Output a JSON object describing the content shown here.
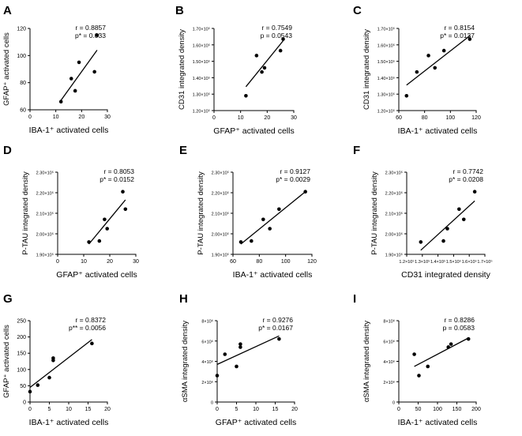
{
  "chart_data": [
    {
      "type": "scatter",
      "panel_label": "A",
      "xlabel": "IBA-1⁺ activated cells",
      "ylabel": "GFAP⁺ activated cells",
      "stats": [
        "r = 0.8857",
        "p* = 0.033"
      ],
      "xlim": [
        0,
        30
      ],
      "ylim": [
        60,
        120
      ],
      "xticks": [
        0,
        10,
        20,
        30
      ],
      "xtick_labels": [
        "0",
        "10",
        "20",
        "30"
      ],
      "yticks": [
        60,
        80,
        100,
        120
      ],
      "ytick_labels": [
        "60",
        "80",
        "100",
        "120"
      ],
      "points": [
        [
          12,
          66
        ],
        [
          16,
          83
        ],
        [
          17.5,
          74
        ],
        [
          19,
          95
        ],
        [
          25,
          88
        ],
        [
          26,
          115
        ]
      ],
      "fit": [
        [
          12,
          67
        ],
        [
          26,
          104
        ]
      ]
    },
    {
      "type": "scatter",
      "panel_label": "B",
      "xlabel": "GFAP⁺ activated cells",
      "ylabel": "CD31 integrated density",
      "stats": [
        "r = 0.7549",
        "p = 0.0543"
      ],
      "xlim": [
        0,
        30
      ],
      "ylim": [
        120000,
        170000
      ],
      "xticks": [
        0,
        10,
        20,
        30
      ],
      "xtick_labels": [
        "0",
        "10",
        "20",
        "30"
      ],
      "yticks": [
        120000,
        130000,
        140000,
        150000,
        160000,
        170000
      ],
      "ytick_labels": [
        "1.20×10⁵",
        "1.30×10⁵",
        "1.40×10⁵",
        "1.50×10⁵",
        "1.60×10⁵",
        "1.70×10⁵"
      ],
      "points": [
        [
          12,
          129000
        ],
        [
          16,
          153500
        ],
        [
          18,
          143500
        ],
        [
          19,
          146000
        ],
        [
          25,
          156500
        ],
        [
          26,
          163500
        ]
      ],
      "fit": [
        [
          12,
          134500
        ],
        [
          26,
          162500
        ]
      ]
    },
    {
      "type": "scatter",
      "panel_label": "C",
      "xlabel": "IBA-1⁺ activated cells",
      "ylabel": "CD31 integrated density",
      "stats": [
        "r = 0.8154",
        "p* = 0.0137"
      ],
      "xlim": [
        60,
        120
      ],
      "ylim": [
        120000,
        170000
      ],
      "xticks": [
        60,
        80,
        100,
        120
      ],
      "xtick_labels": [
        "60",
        "80",
        "100",
        "120"
      ],
      "yticks": [
        120000,
        130000,
        140000,
        150000,
        160000,
        170000
      ],
      "ytick_labels": [
        "1.20×10⁵",
        "1.30×10⁵",
        "1.40×10⁵",
        "1.50×10⁵",
        "1.60×10⁵",
        "1.70×10⁵"
      ],
      "points": [
        [
          66,
          129000
        ],
        [
          74,
          143500
        ],
        [
          83,
          153500
        ],
        [
          88,
          146000
        ],
        [
          95,
          156500
        ],
        [
          115,
          163500
        ]
      ],
      "fit": [
        [
          66,
          135500
        ],
        [
          115,
          165500
        ]
      ]
    },
    {
      "type": "scatter",
      "panel_label": "D",
      "xlabel": "GFAP⁺ activated cells",
      "ylabel": "P-TAU integrated density",
      "stats": [
        "r = 0.8053",
        "p* = 0.0152"
      ],
      "xlim": [
        0,
        30
      ],
      "ylim": [
        190000,
        230000
      ],
      "xticks": [
        0,
        10,
        20,
        30
      ],
      "xtick_labels": [
        "0",
        "10",
        "20",
        "30"
      ],
      "yticks": [
        190000,
        200000,
        210000,
        220000,
        230000
      ],
      "ytick_labels": [
        "1.90×10⁵",
        "2.00×10⁵",
        "2.10×10⁵",
        "2.20×10⁵",
        "2.30×10⁵"
      ],
      "points": [
        [
          12,
          196000
        ],
        [
          16,
          196500
        ],
        [
          18,
          207000
        ],
        [
          19,
          202500
        ],
        [
          25,
          220500
        ],
        [
          26,
          212000
        ]
      ],
      "fit": [
        [
          12,
          195000
        ],
        [
          26,
          216500
        ]
      ]
    },
    {
      "type": "scatter",
      "panel_label": "E",
      "xlabel": "IBA-1⁺ activated cells",
      "ylabel": "P-TAU integrated density",
      "stats": [
        "r = 0.9127",
        "p* = 0.0029"
      ],
      "xlim": [
        60,
        120
      ],
      "ylim": [
        190000,
        230000
      ],
      "xticks": [
        60,
        80,
        100,
        120
      ],
      "xtick_labels": [
        "60",
        "80",
        "100",
        "120"
      ],
      "yticks": [
        190000,
        200000,
        210000,
        220000,
        230000
      ],
      "ytick_labels": [
        "1.90×10⁵",
        "2.00×10⁵",
        "2.10×10⁵",
        "2.20×10⁵",
        "2.30×10⁵"
      ],
      "points": [
        [
          66,
          196000
        ],
        [
          74,
          196500
        ],
        [
          83,
          207000
        ],
        [
          88,
          202500
        ],
        [
          95,
          212000
        ],
        [
          115,
          220500
        ]
      ],
      "fit": [
        [
          66,
          195000
        ],
        [
          115,
          220500
        ]
      ]
    },
    {
      "type": "scatter",
      "panel_label": "F",
      "xlabel": "CD31 integrated density",
      "ylabel": "P-TAU integrated density",
      "stats": [
        "r = 0.7742",
        "p* = 0.0208"
      ],
      "xlim": [
        120000,
        170000
      ],
      "ylim": [
        190000,
        230000
      ],
      "xticks": [
        120000,
        130000,
        140000,
        150000,
        160000,
        170000
      ],
      "xtick_labels": [
        "1.2×10⁵",
        "1.3×10⁵",
        "1.4×10⁵",
        "1.5×10⁵",
        "1.6×10⁵",
        "1.7×10⁵"
      ],
      "yticks": [
        190000,
        200000,
        210000,
        220000,
        230000
      ],
      "ytick_labels": [
        "1.90×10⁵",
        "2.00×10⁵",
        "2.10×10⁵",
        "2.20×10⁵",
        "2.30×10⁵"
      ],
      "points": [
        [
          129000,
          196000
        ],
        [
          143500,
          196500
        ],
        [
          146000,
          202500
        ],
        [
          153500,
          212000
        ],
        [
          156500,
          207000
        ],
        [
          163500,
          220500
        ]
      ],
      "fit": [
        [
          129000,
          192000
        ],
        [
          163500,
          216000
        ]
      ]
    },
    {
      "type": "scatter",
      "panel_label": "G",
      "xlabel": "IBA-1⁺ activated cells",
      "ylabel": "GFAP⁺ activated cells",
      "stats": [
        "r = 0.8372",
        "p** = 0.0056"
      ],
      "xlim": [
        0,
        20
      ],
      "ylim": [
        0,
        250
      ],
      "xticks": [
        0,
        5,
        10,
        15,
        20
      ],
      "xtick_labels": [
        "0",
        "5",
        "10",
        "15",
        "20"
      ],
      "yticks": [
        0,
        50,
        100,
        150,
        200,
        250
      ],
      "ytick_labels": [
        "0",
        "50",
        "100",
        "150",
        "200",
        "250"
      ],
      "points": [
        [
          0,
          32
        ],
        [
          2,
          52
        ],
        [
          5,
          75
        ],
        [
          6,
          128
        ],
        [
          6,
          135
        ],
        [
          16,
          180
        ]
      ],
      "fit": [
        [
          0,
          45
        ],
        [
          16,
          192
        ]
      ]
    },
    {
      "type": "scatter",
      "panel_label": "H",
      "xlabel": "GFAP⁺ activated cells",
      "ylabel": "αSMA integrated density",
      "stats": [
        "r = 0.9276",
        "p* = 0.0167"
      ],
      "xlim": [
        0,
        20
      ],
      "ylim": [
        0,
        8000000
      ],
      "xticks": [
        0,
        5,
        10,
        15,
        20
      ],
      "xtick_labels": [
        "0",
        "5",
        "10",
        "15",
        "20"
      ],
      "yticks": [
        0,
        2000000,
        4000000,
        6000000,
        8000000
      ],
      "ytick_labels": [
        "0",
        "2×10⁶",
        "4×10⁶",
        "6×10⁶",
        "8×10⁶"
      ],
      "points": [
        [
          0,
          2600000
        ],
        [
          2,
          4700000
        ],
        [
          5,
          3500000
        ],
        [
          6,
          5400000
        ],
        [
          6,
          5700000
        ],
        [
          16,
          6200000
        ]
      ],
      "fit": [
        [
          0,
          3700000
        ],
        [
          16,
          6500000
        ]
      ]
    },
    {
      "type": "scatter",
      "panel_label": "I",
      "xlabel": "IBA-1⁺ activated cells",
      "ylabel": "αSMA integrated density",
      "stats": [
        "r = 0.8286",
        "p = 0.0583"
      ],
      "xlim": [
        0,
        200
      ],
      "ylim": [
        0,
        8000000
      ],
      "xticks": [
        0,
        50,
        100,
        150,
        200
      ],
      "xtick_labels": [
        "0",
        "50",
        "100",
        "150",
        "200"
      ],
      "yticks": [
        0,
        2000000,
        4000000,
        6000000,
        8000000
      ],
      "ytick_labels": [
        "0",
        "2×10⁶",
        "4×10⁶",
        "6×10⁶",
        "8×10⁶"
      ],
      "points": [
        [
          40,
          4700000
        ],
        [
          52,
          2600000
        ],
        [
          75,
          3500000
        ],
        [
          128,
          5400000
        ],
        [
          135,
          5700000
        ],
        [
          180,
          6200000
        ]
      ],
      "fit": [
        [
          40,
          3500000
        ],
        [
          180,
          6300000
        ]
      ]
    }
  ]
}
